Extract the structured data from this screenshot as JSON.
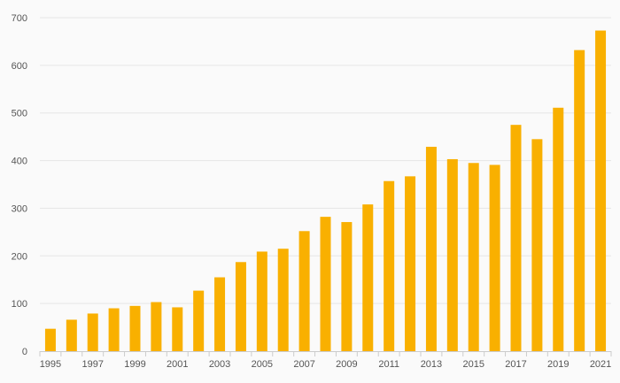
{
  "chart_data": {
    "type": "bar",
    "title": "",
    "xlabel": "",
    "ylabel": "",
    "categories": [
      "1995",
      "1996",
      "1997",
      "1998",
      "1999",
      "2000",
      "2001",
      "2002",
      "2003",
      "2004",
      "2005",
      "2006",
      "2007",
      "2008",
      "2009",
      "2010",
      "2011",
      "2012",
      "2013",
      "2014",
      "2015",
      "2016",
      "2017",
      "2018",
      "2019",
      "2020",
      "2021"
    ],
    "values": [
      47,
      66,
      79,
      90,
      95,
      103,
      92,
      127,
      155,
      187,
      209,
      215,
      252,
      282,
      271,
      308,
      357,
      367,
      429,
      403,
      395,
      391,
      475,
      445,
      511,
      632,
      673
    ],
    "x_tick_labels": [
      "1995",
      "1997",
      "1999",
      "2001",
      "2003",
      "2005",
      "2007",
      "2009",
      "2011",
      "2013",
      "2015",
      "2017",
      "2019",
      "2021"
    ],
    "y_ticks": [
      "0",
      "100",
      "200",
      "300",
      "400",
      "500",
      "600",
      "700"
    ],
    "ylim": [
      0,
      700
    ],
    "grid": true,
    "bar_color": "#f9b000"
  }
}
